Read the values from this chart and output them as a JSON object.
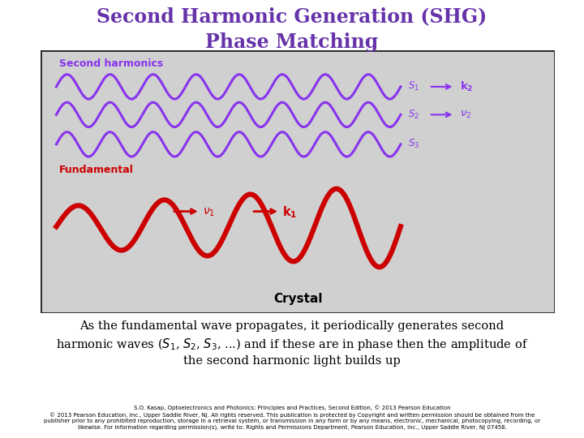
{
  "title_line1": "Second Harmonic Generation (SHG)",
  "title_line2": "Phase Matching",
  "title_color": "#6633aa",
  "title_fontsize": 17,
  "bg_color": "#ffffff",
  "box_bg_color": "#d0d0d0",
  "box_edge_color": "#222222",
  "shg_color": "#8833ee",
  "fundamental_color": "#cc0000",
  "label_shg_color": "#8833ee",
  "label_fundamental_color": "#cc0000",
  "text_color": "#000000",
  "body_text": "As the fundamental wave propagates, it periodically generates second\nharmonic waves ($S_1$, $S_2$, $S_3$, ...) and if these are in phase then the amplitude of\nthe second harmonic light builds up",
  "copyright_text": "S.O. Kasap, Optoelectronics and Photonics: Principles and Practices, Second Edition, © 2013 Pearson Education\n© 2013 Pearson Education, Inc., Upper Saddle River, NJ. All rights reserved. This publication is protected by Copyright and written permission should be obtained from the\npublisher prior to any prohibited reproduction, storage in a retrieval system, or transmission in any form or by any means, electronic, mechanical, photocopying, recording, or\nlikewise. For information regarding permission(s), write to: Rights and Permissions Department, Pearson Education, Inc., Upper Saddle River, NJ 07458.",
  "copyright_fontsize": 5.0,
  "body_fontsize": 10.5
}
